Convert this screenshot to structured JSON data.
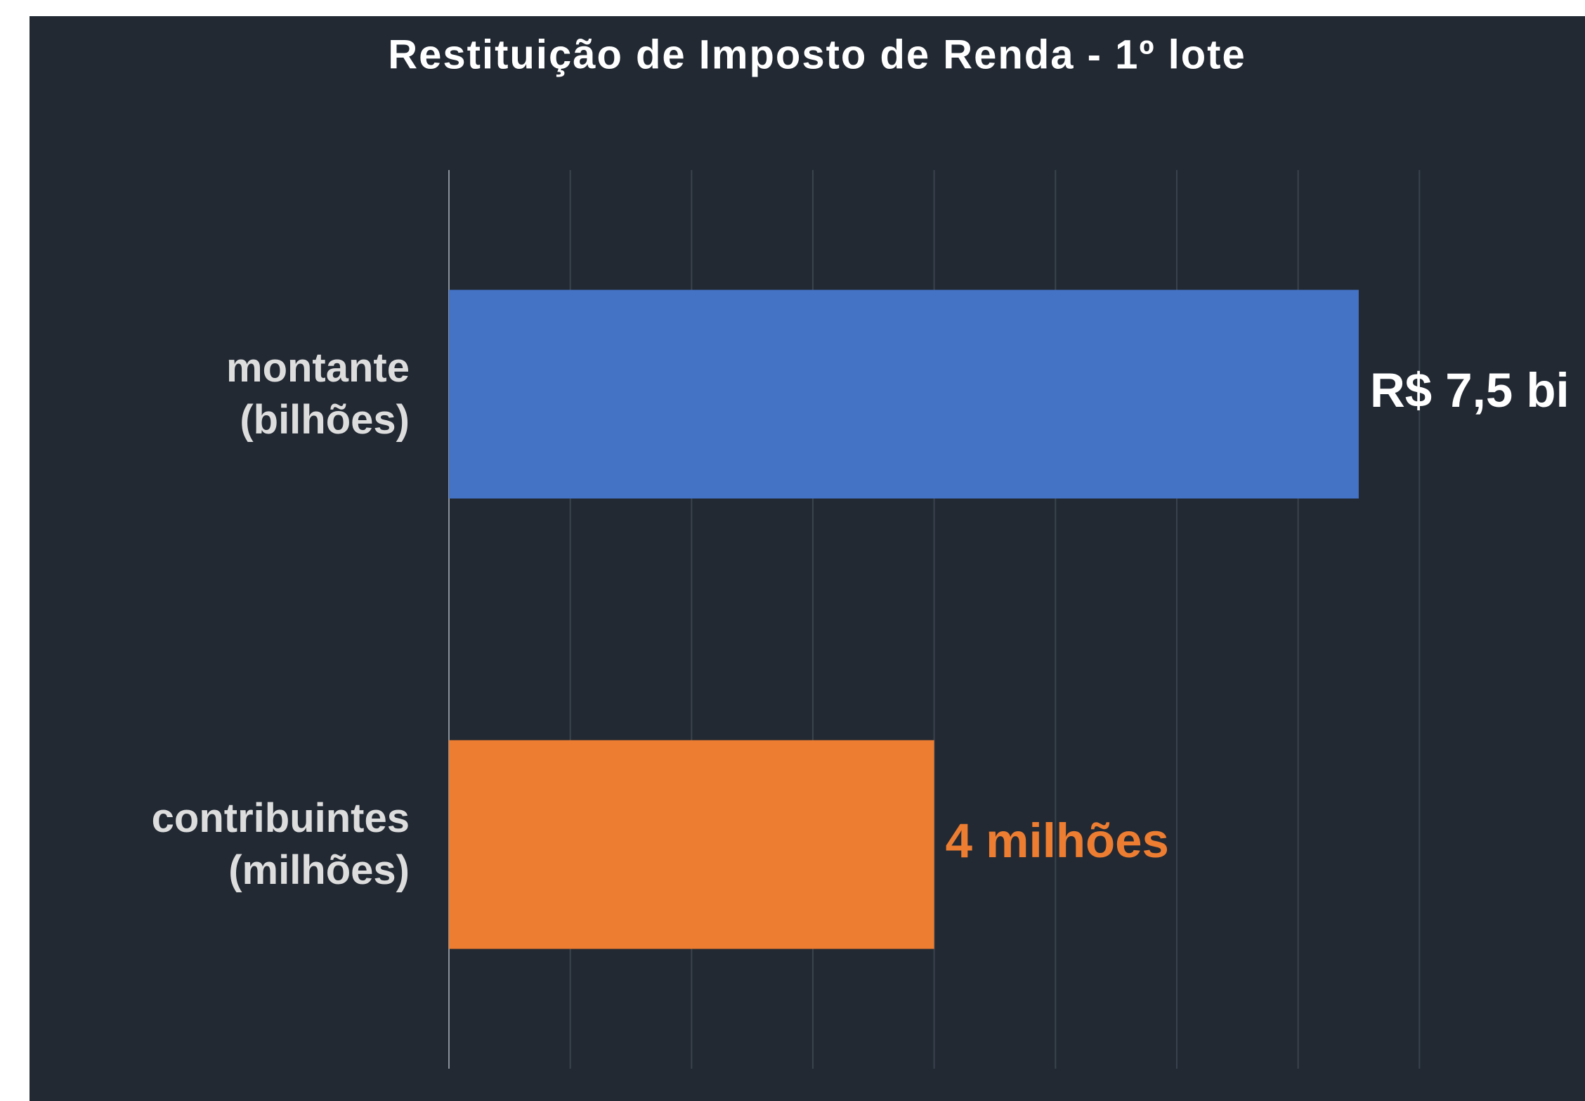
{
  "chart_data": {
    "type": "barh",
    "title": "Restituição de Imposto de Renda - 1º lote",
    "categories": [
      "montante\n(bilhões)",
      "contribuintes\n(milhões)"
    ],
    "values": [
      7.5,
      4
    ],
    "value_labels": [
      "R$ 7,5 bi",
      "4 milhões"
    ],
    "colors": [
      "#4472c4",
      "#ed7d31"
    ],
    "value_label_colors": [
      "#ffffff",
      "#ed7d31"
    ],
    "xlim": [
      0,
      9.37
    ],
    "xticks": [
      0,
      1,
      2,
      3,
      4,
      5,
      6,
      7,
      8
    ],
    "grid": true
  }
}
